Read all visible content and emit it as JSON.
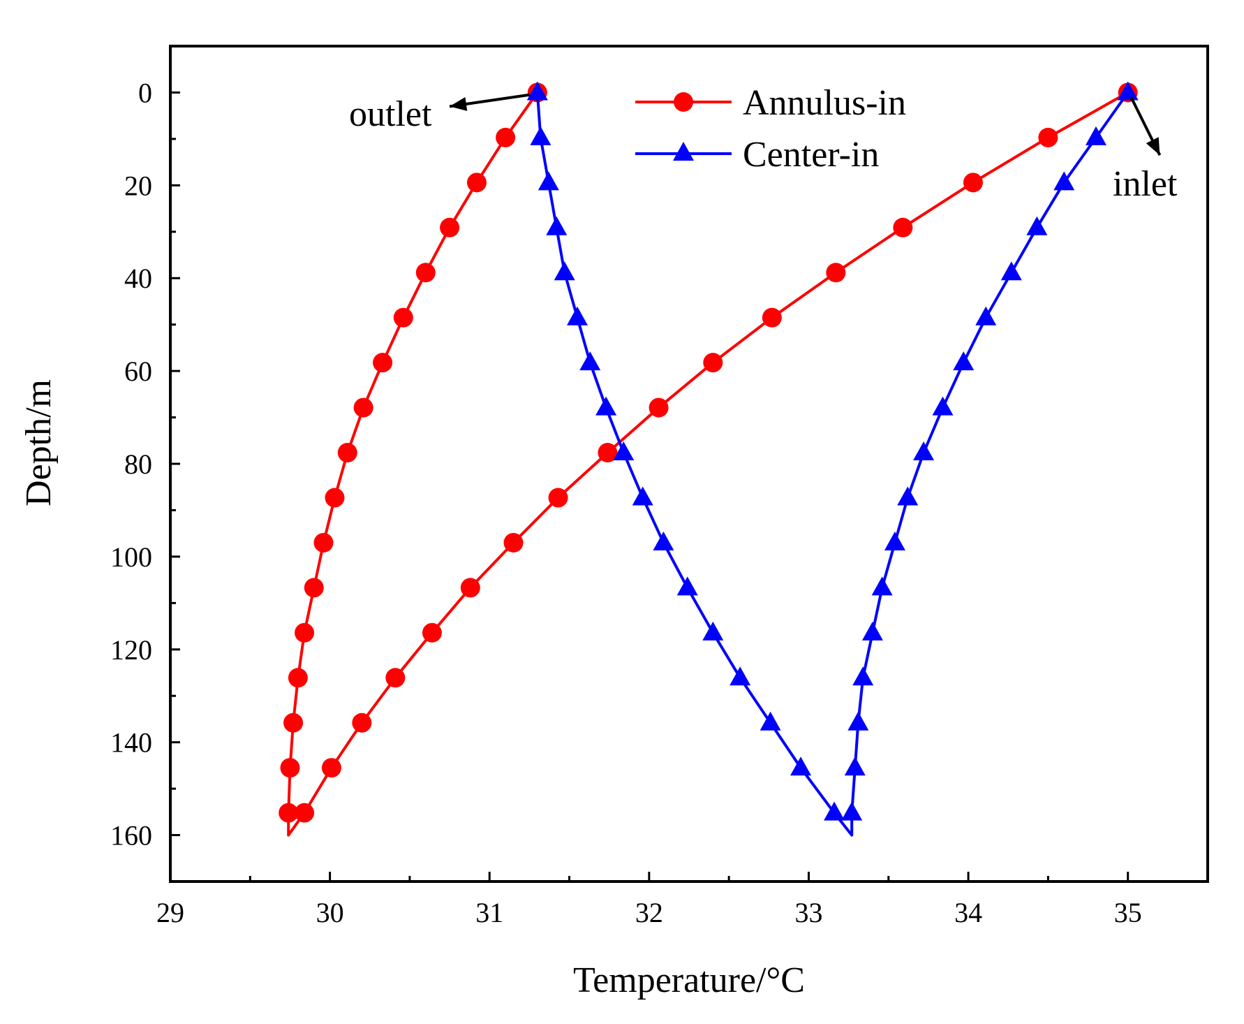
{
  "chart_data": {
    "type": "line",
    "xlabel": "Temperature/°C",
    "ylabel": "Depth/m",
    "xlim": [
      29,
      35.5
    ],
    "ylim": [
      170,
      -10
    ],
    "y_axis_inverted": true,
    "grid": false,
    "legend_position": "top-center",
    "x_ticks": [
      29,
      30,
      31,
      32,
      33,
      34,
      35
    ],
    "x_tick_labels": [
      "29",
      "30",
      "31",
      "32",
      "33",
      "34",
      "35"
    ],
    "x_minor_ticks": [
      29.5,
      30.5,
      31.5,
      32.5,
      33.5,
      34.5
    ],
    "y_ticks": [
      0,
      20,
      40,
      60,
      80,
      100,
      120,
      140,
      160
    ],
    "y_tick_labels": [
      "0",
      "20",
      "40",
      "60",
      "80",
      "100",
      "120",
      "140",
      "160"
    ],
    "y_minor_ticks": [
      10,
      30,
      50,
      70,
      90,
      110,
      130,
      150
    ],
    "series": [
      {
        "name": "Annulus-in",
        "color": "#ff0000",
        "marker": "circle",
        "line": [
          [
            31.3,
            0
          ],
          [
            31.1,
            9.7
          ],
          [
            30.92,
            19.4
          ],
          [
            30.75,
            29.1
          ],
          [
            30.6,
            38.8
          ],
          [
            30.46,
            48.5
          ],
          [
            30.33,
            58.2
          ],
          [
            30.21,
            67.9
          ],
          [
            30.11,
            77.6
          ],
          [
            30.03,
            87.3
          ],
          [
            29.96,
            97
          ],
          [
            29.9,
            106.7
          ],
          [
            29.84,
            116.4
          ],
          [
            29.8,
            126.1
          ],
          [
            29.77,
            135.8
          ],
          [
            29.75,
            145.5
          ],
          [
            29.74,
            155.2
          ],
          [
            29.74,
            160
          ],
          [
            29.84,
            155.2
          ],
          [
            30.01,
            145.5
          ],
          [
            30.2,
            135.8
          ],
          [
            30.41,
            126.1
          ],
          [
            30.64,
            116.4
          ],
          [
            30.88,
            106.7
          ],
          [
            31.15,
            97
          ],
          [
            31.43,
            87.3
          ],
          [
            31.74,
            77.6
          ],
          [
            32.06,
            67.9
          ],
          [
            32.4,
            58.2
          ],
          [
            32.77,
            48.5
          ],
          [
            33.17,
            38.8
          ],
          [
            33.59,
            29.1
          ],
          [
            34.03,
            19.4
          ],
          [
            34.5,
            9.7
          ],
          [
            35.0,
            0
          ]
        ],
        "markers": [
          [
            31.3,
            0
          ],
          [
            31.1,
            9.7
          ],
          [
            30.92,
            19.4
          ],
          [
            30.75,
            29.1
          ],
          [
            30.6,
            38.8
          ],
          [
            30.46,
            48.5
          ],
          [
            30.33,
            58.2
          ],
          [
            30.21,
            67.9
          ],
          [
            30.11,
            77.6
          ],
          [
            30.03,
            87.3
          ],
          [
            29.96,
            97
          ],
          [
            29.9,
            106.7
          ],
          [
            29.84,
            116.4
          ],
          [
            29.8,
            126.1
          ],
          [
            29.77,
            135.8
          ],
          [
            29.75,
            145.5
          ],
          [
            29.74,
            155.2
          ],
          [
            29.84,
            155.2
          ],
          [
            30.01,
            145.5
          ],
          [
            30.2,
            135.8
          ],
          [
            30.41,
            126.1
          ],
          [
            30.64,
            116.4
          ],
          [
            30.88,
            106.7
          ],
          [
            31.15,
            97
          ],
          [
            31.43,
            87.3
          ],
          [
            31.74,
            77.6
          ],
          [
            32.06,
            67.9
          ],
          [
            32.4,
            58.2
          ],
          [
            32.77,
            48.5
          ],
          [
            33.17,
            38.8
          ],
          [
            33.59,
            29.1
          ],
          [
            34.03,
            19.4
          ],
          [
            34.5,
            9.7
          ],
          [
            35.0,
            0
          ]
        ]
      },
      {
        "name": "Center-in",
        "color": "#0000ff",
        "marker": "triangle",
        "line": [
          [
            31.3,
            0
          ],
          [
            31.32,
            9.7
          ],
          [
            31.37,
            19.4
          ],
          [
            31.42,
            29.1
          ],
          [
            31.47,
            38.8
          ],
          [
            31.55,
            48.5
          ],
          [
            31.63,
            58.2
          ],
          [
            31.73,
            67.9
          ],
          [
            31.84,
            77.6
          ],
          [
            31.96,
            87.3
          ],
          [
            32.09,
            97
          ],
          [
            32.24,
            106.7
          ],
          [
            32.4,
            116.4
          ],
          [
            32.57,
            126.1
          ],
          [
            32.76,
            135.8
          ],
          [
            32.95,
            145.5
          ],
          [
            33.16,
            155.2
          ],
          [
            33.27,
            160
          ],
          [
            33.27,
            155.2
          ],
          [
            33.29,
            145.5
          ],
          [
            33.31,
            135.8
          ],
          [
            33.34,
            126.1
          ],
          [
            33.4,
            116.4
          ],
          [
            33.46,
            106.7
          ],
          [
            33.54,
            97
          ],
          [
            33.62,
            87.3
          ],
          [
            33.72,
            77.6
          ],
          [
            33.84,
            67.9
          ],
          [
            33.97,
            58.2
          ],
          [
            34.11,
            48.5
          ],
          [
            34.27,
            38.8
          ],
          [
            34.43,
            29.1
          ],
          [
            34.6,
            19.4
          ],
          [
            34.8,
            9.7
          ],
          [
            35.0,
            0
          ]
        ],
        "markers": [
          [
            31.3,
            0
          ],
          [
            31.32,
            9.7
          ],
          [
            31.37,
            19.4
          ],
          [
            31.42,
            29.1
          ],
          [
            31.47,
            38.8
          ],
          [
            31.55,
            48.5
          ],
          [
            31.63,
            58.2
          ],
          [
            31.73,
            67.9
          ],
          [
            31.84,
            77.6
          ],
          [
            31.96,
            87.3
          ],
          [
            32.09,
            97
          ],
          [
            32.24,
            106.7
          ],
          [
            32.4,
            116.4
          ],
          [
            32.57,
            126.1
          ],
          [
            32.76,
            135.8
          ],
          [
            32.95,
            145.5
          ],
          [
            33.16,
            155.2
          ],
          [
            33.27,
            155.2
          ],
          [
            33.29,
            145.5
          ],
          [
            33.31,
            135.8
          ],
          [
            33.34,
            126.1
          ],
          [
            33.4,
            116.4
          ],
          [
            33.46,
            106.7
          ],
          [
            33.54,
            97
          ],
          [
            33.62,
            87.3
          ],
          [
            33.72,
            77.6
          ],
          [
            33.84,
            67.9
          ],
          [
            33.97,
            58.2
          ],
          [
            34.11,
            48.5
          ],
          [
            34.27,
            38.8
          ],
          [
            34.43,
            29.1
          ],
          [
            34.6,
            19.4
          ],
          [
            34.8,
            9.7
          ],
          [
            35.0,
            0
          ]
        ]
      }
    ],
    "annotations": [
      {
        "text": "outlet",
        "arrow_from": [
          31.25,
          0.5
        ],
        "arrow_to": [
          30.75,
          3
        ]
      },
      {
        "text": "inlet",
        "arrow_from": [
          35.02,
          1
        ],
        "arrow_to": [
          35.2,
          13.5
        ]
      }
    ]
  }
}
